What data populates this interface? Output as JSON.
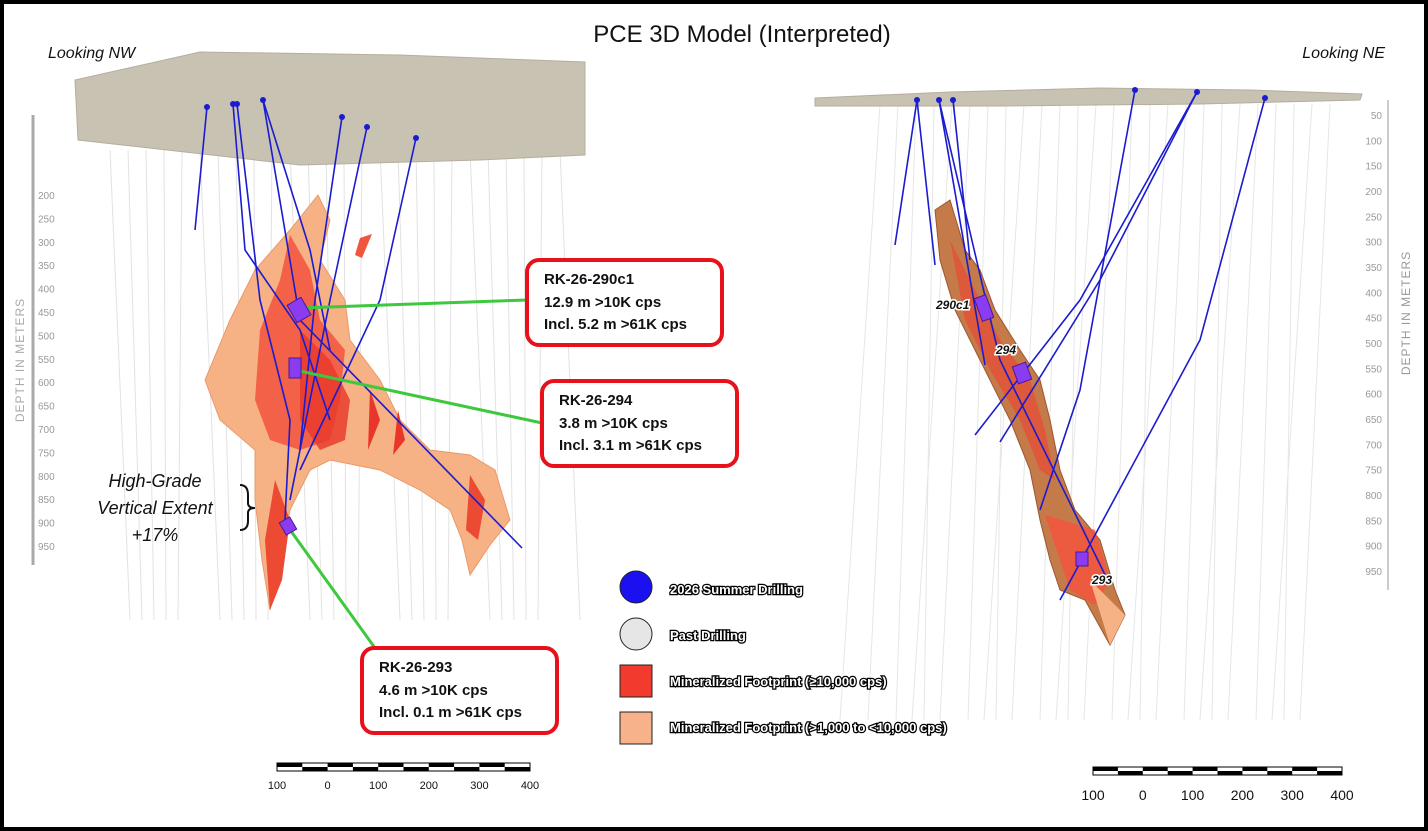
{
  "title": "PCE 3D Model (Interpreted)",
  "views": [
    {
      "label": "Looking NW",
      "depth_axis_label": "DEPTH IN METERS",
      "depth_ticks": [
        200,
        250,
        300,
        350,
        400,
        450,
        500,
        550,
        600,
        650,
        700,
        750,
        800,
        850,
        900,
        950
      ],
      "scale_labels": [
        100,
        0,
        100,
        200,
        300,
        400
      ],
      "annotation": [
        "High-Grade",
        "Vertical Extent",
        "+17%"
      ]
    },
    {
      "label": "Looking NE",
      "depth_axis_label": "DEPTH IN METERS",
      "depth_ticks": [
        50,
        100,
        150,
        200,
        250,
        300,
        350,
        400,
        450,
        500,
        550,
        600,
        650,
        700,
        750,
        800,
        850,
        900,
        950
      ],
      "scale_labels": [
        100,
        0,
        100,
        200,
        300,
        400
      ],
      "hole_labels": [
        "290c1",
        "294",
        "293"
      ]
    }
  ],
  "callouts": [
    {
      "hole": "RK-26-290c1",
      "lines": [
        "12.9 m >10K cps",
        "Incl. 5.2 m >61K cps"
      ]
    },
    {
      "hole": "RK-26-294",
      "lines": [
        "3.8 m >10K cps",
        "Incl. 3.1 m >61K cps"
      ]
    },
    {
      "hole": "RK-26-293",
      "lines": [
        "4.6 m >10K cps",
        "Incl. 0.1 m >61K cps"
      ]
    }
  ],
  "legend": [
    "2026 Summer Drilling",
    "Past Drilling",
    "Mineralized Footprint (≥10,000 cps)",
    "Mineralized Footprint (>1,000 to <10,000 cps)"
  ]
}
